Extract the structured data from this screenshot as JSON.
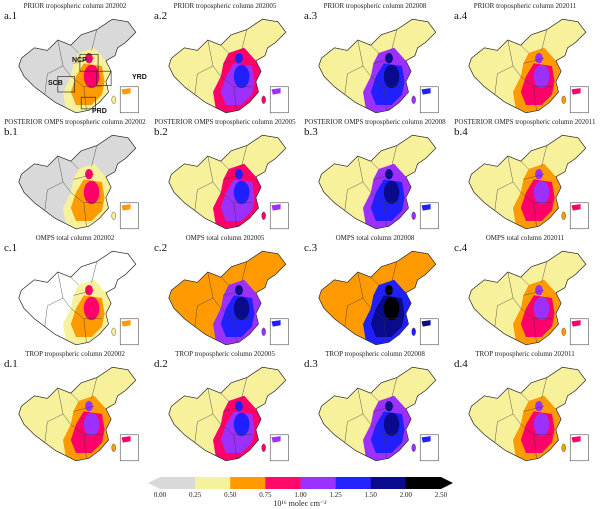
{
  "panels": [
    {
      "label": "a.1",
      "title": "PRIOR tropospheric column 202002",
      "west": "#d9d9d9",
      "east": "#f6f19a",
      "core": "#ff9a00",
      "hot": "#ff006a"
    },
    {
      "label": "a.2",
      "title": "PRIOR tropospheric column 202005",
      "west": "#f6f19a",
      "east": "#ff006a",
      "core": "#9b30ff",
      "hot": "#2020ff"
    },
    {
      "label": "a.3",
      "title": "PRIOR tropospheric column 202008",
      "west": "#f6f19a",
      "east": "#9b30ff",
      "core": "#2020ff",
      "hot": "#0a0a8c"
    },
    {
      "label": "a.4",
      "title": "PRIOR tropospheric column 202011",
      "west": "#f6f19a",
      "east": "#ff9a00",
      "core": "#ff006a",
      "hot": "#9b30ff"
    },
    {
      "label": "b.1",
      "title": "POSTERIOR OMPS tropospheric column 202002",
      "west": "#d9d9d9",
      "east": "#f6f19a",
      "core": "#ff9a00",
      "hot": "#ff006a"
    },
    {
      "label": "b.2",
      "title": "POSTERIOR OMPS tropospheric column 202005",
      "west": "#f6f19a",
      "east": "#ff006a",
      "core": "#9b30ff",
      "hot": "#2020ff"
    },
    {
      "label": "b.3",
      "title": "POSTERIOR OMPS tropospheric column 202008",
      "west": "#f6f19a",
      "east": "#9b30ff",
      "core": "#2020ff",
      "hot": "#0a0a8c"
    },
    {
      "label": "b.4",
      "title": "POSTERIOR OMPS tropospheric column 202011",
      "west": "#f6f19a",
      "east": "#ff9a00",
      "core": "#ff006a",
      "hot": "#9b30ff"
    },
    {
      "label": "c.1",
      "title": "OMPS total column 202002",
      "west": "#ffffff",
      "east": "#f6f19a",
      "core": "#ff9a00",
      "hot": "#ff006a"
    },
    {
      "label": "c.2",
      "title": "OMPS total column 202005",
      "west": "#ff9a00",
      "east": "#9b30ff",
      "core": "#2020ff",
      "hot": "#0a0a8c"
    },
    {
      "label": "c.3",
      "title": "OMPS total column 202008",
      "west": "#ff9a00",
      "east": "#2020ff",
      "core": "#0a0a8c",
      "hot": "#000000"
    },
    {
      "label": "c.4",
      "title": "OMPS total column 202011",
      "west": "#f6f19a",
      "east": "#ff9a00",
      "core": "#ff006a",
      "hot": "#9b30ff"
    },
    {
      "label": "d.1",
      "title": "TROP tropospheric column 202002",
      "west": "#f6f19a",
      "east": "#ff9a00",
      "core": "#ff006a",
      "hot": "#9b30ff"
    },
    {
      "label": "d.2",
      "title": "TROP tropospheric column 202005",
      "west": "#f6f19a",
      "east": "#ff006a",
      "core": "#9b30ff",
      "hot": "#2020ff"
    },
    {
      "label": "d.3",
      "title": "TROP tropospheric column 202008",
      "west": "#f6f19a",
      "east": "#9b30ff",
      "core": "#2020ff",
      "hot": "#0a0a8c"
    },
    {
      "label": "d.4",
      "title": "TROP tropospheric column 202011",
      "west": "#f6f19a",
      "east": "#ff9a00",
      "core": "#ff006a",
      "hot": "#9b30ff"
    }
  ],
  "regions": [
    "NCP",
    "YRD",
    "SCB",
    "PRD"
  ],
  "colorbar": {
    "ticks": [
      "0.00",
      "0.25",
      "0.50",
      "0.75",
      "1.00",
      "1.25",
      "1.50",
      "2.00",
      "2.50"
    ],
    "colors": [
      "#d9d9d9",
      "#f4f29a",
      "#ff9a00",
      "#ff0a6a",
      "#9b30ff",
      "#2323ff",
      "#0a0a8c",
      "#000000"
    ],
    "unit": "10¹⁶ molec cm⁻²"
  }
}
